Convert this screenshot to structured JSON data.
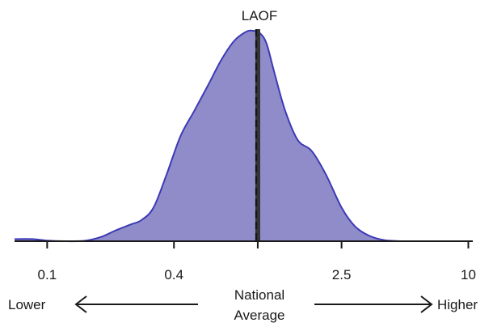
{
  "chart_data": {
    "type": "area",
    "title": "LAOF",
    "x_scale": "log",
    "x_ticks": [
      {
        "value": 0.1,
        "label": "0.1"
      },
      {
        "value": 0.4,
        "label": "0.4"
      },
      {
        "value": 2.5,
        "label": "2.5"
      },
      {
        "value": 10,
        "label": "10"
      }
    ],
    "xlim": [
      0.07,
      10.5
    ],
    "reference_line": {
      "x": 1,
      "style": "dashed-black",
      "label": "LAOF"
    },
    "density": {
      "x": [
        0.07,
        0.085,
        0.1,
        0.12,
        0.15,
        0.18,
        0.21,
        0.25,
        0.28,
        0.32,
        0.37,
        0.43,
        0.5,
        0.58,
        0.67,
        0.77,
        0.88,
        0.95,
        1.02,
        1.1,
        1.2,
        1.35,
        1.55,
        1.8,
        2.1,
        2.5,
        2.9,
        3.4,
        4.0,
        4.8
      ],
      "y": [
        0.01,
        0.01,
        0.003,
        0.0,
        0.002,
        0.02,
        0.05,
        0.08,
        0.1,
        0.16,
        0.32,
        0.5,
        0.62,
        0.74,
        0.86,
        0.95,
        0.995,
        1.0,
        0.99,
        0.94,
        0.8,
        0.62,
        0.48,
        0.43,
        0.32,
        0.16,
        0.07,
        0.025,
        0.005,
        0.0
      ]
    },
    "fill_color": "#8f8cc9",
    "line_color": "#3c3ab5",
    "ref_color": "#333333"
  },
  "bottom": {
    "left_label": "Lower",
    "center_label_line1": "National",
    "center_label_line2": "Average",
    "right_label": "Higher"
  }
}
